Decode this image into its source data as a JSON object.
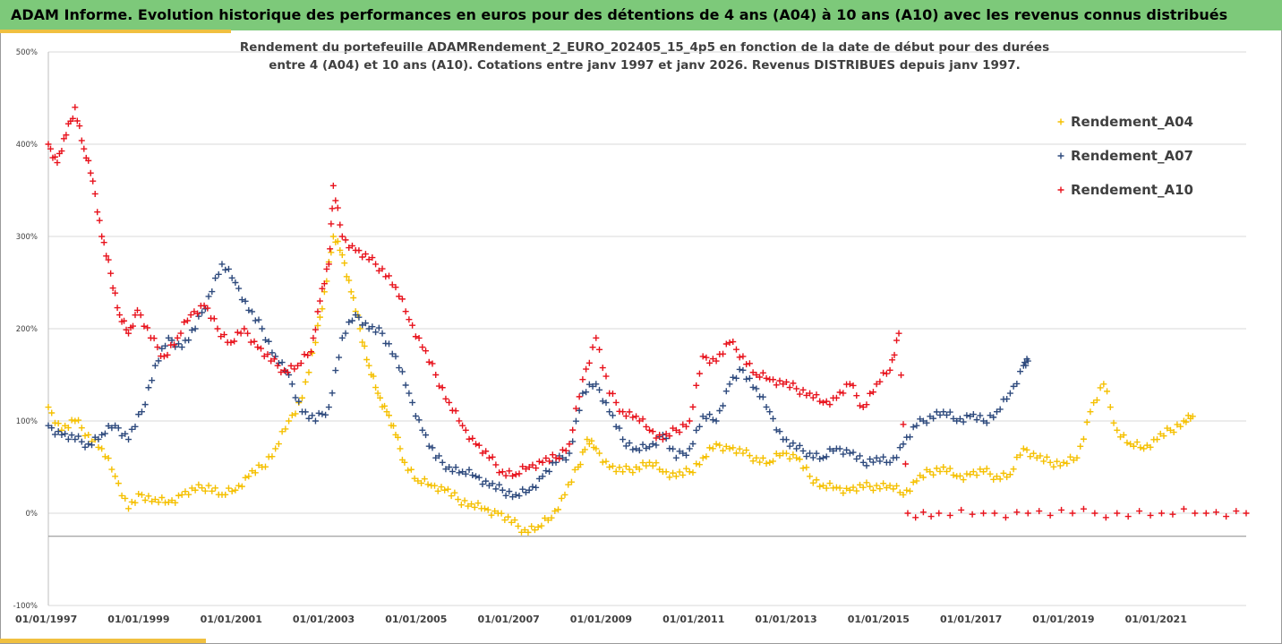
{
  "header": {
    "title": "ADAM Informe. Evolution historique des performances en euros pour des détentions de 4 ans (A04) à 10 ans (A10) avec les revenus connus distribués"
  },
  "chart_title_line1": "Rendement du portefeuille ADAMRendement_2_EURO_202405_15_4p5  en fonction de la date de début pour des durées",
  "chart_title_line2": "entre 4 (A04) et 10 ans (A10). Cotations entre janv 1997 et janv 2026. Revenus DISTRIBUES depuis janv 1997.",
  "chart_data": {
    "type": "scatter",
    "ylim": [
      -100,
      500
    ],
    "xlim": [
      1997.0,
      2023.9
    ],
    "y_ticks": [
      "500%",
      "400%",
      "300%",
      "200%",
      "100%",
      "0%",
      "-100%"
    ],
    "x_ticks": [
      "01/01/1997",
      "01/01/1999",
      "01/01/2001",
      "01/01/2003",
      "01/01/2005",
      "01/01/2007",
      "01/01/2009",
      "01/01/2011",
      "01/01/2013",
      "01/01/2015",
      "01/01/2017",
      "01/01/2019",
      "01/01/2021"
    ],
    "grid": true,
    "legend_position": "top-right",
    "series": [
      {
        "name": "Rendement_A04",
        "color": "#f5c000",
        "points": [
          [
            1997.0,
            115
          ],
          [
            1997.3,
            90
          ],
          [
            1997.6,
            100
          ],
          [
            1997.9,
            85
          ],
          [
            1998.2,
            70
          ],
          [
            1998.5,
            40
          ],
          [
            1998.8,
            5
          ],
          [
            1999.1,
            20
          ],
          [
            1999.4,
            15
          ],
          [
            1999.7,
            12
          ],
          [
            2000.0,
            20
          ],
          [
            2000.3,
            25
          ],
          [
            2000.6,
            30
          ],
          [
            2000.9,
            20
          ],
          [
            2001.2,
            25
          ],
          [
            2001.5,
            40
          ],
          [
            2001.8,
            50
          ],
          [
            2002.1,
            70
          ],
          [
            2002.4,
            100
          ],
          [
            2002.7,
            125
          ],
          [
            2003.0,
            185
          ],
          [
            2003.2,
            240
          ],
          [
            2003.4,
            300
          ],
          [
            2003.6,
            280
          ],
          [
            2003.8,
            240
          ],
          [
            2004.0,
            200
          ],
          [
            2004.2,
            160
          ],
          [
            2004.4,
            130
          ],
          [
            2004.6,
            110
          ],
          [
            2004.8,
            85
          ],
          [
            2005.0,
            55
          ],
          [
            2005.3,
            35
          ],
          [
            2005.6,
            30
          ],
          [
            2005.9,
            25
          ],
          [
            2006.2,
            15
          ],
          [
            2006.5,
            10
          ],
          [
            2006.8,
            5
          ],
          [
            2007.1,
            0
          ],
          [
            2007.4,
            -10
          ],
          [
            2007.7,
            -18
          ],
          [
            2008.0,
            -15
          ],
          [
            2008.3,
            -5
          ],
          [
            2008.6,
            20
          ],
          [
            2008.9,
            50
          ],
          [
            2009.1,
            80
          ],
          [
            2009.3,
            70
          ],
          [
            2009.6,
            50
          ],
          [
            2009.9,
            45
          ],
          [
            2010.2,
            50
          ],
          [
            2010.5,
            55
          ],
          [
            2010.8,
            45
          ],
          [
            2011.1,
            40
          ],
          [
            2011.4,
            45
          ],
          [
            2011.7,
            60
          ],
          [
            2012.0,
            75
          ],
          [
            2012.3,
            70
          ],
          [
            2012.6,
            65
          ],
          [
            2012.9,
            60
          ],
          [
            2013.2,
            55
          ],
          [
            2013.5,
            65
          ],
          [
            2013.8,
            60
          ],
          [
            2014.1,
            40
          ],
          [
            2014.4,
            30
          ],
          [
            2014.7,
            28
          ],
          [
            2015.0,
            25
          ],
          [
            2015.3,
            28
          ],
          [
            2015.6,
            30
          ],
          [
            2015.9,
            30
          ],
          [
            2016.2,
            20
          ],
          [
            2016.5,
            35
          ],
          [
            2016.8,
            45
          ],
          [
            2017.1,
            50
          ],
          [
            2017.4,
            40
          ],
          [
            2017.7,
            42
          ],
          [
            2018.0,
            45
          ],
          [
            2018.3,
            40
          ],
          [
            2018.6,
            42
          ],
          [
            2018.9,
            70
          ],
          [
            2019.2,
            60
          ],
          [
            2019.5,
            55
          ],
          [
            2019.8,
            55
          ],
          [
            2020.1,
            60
          ],
          [
            2020.4,
            110
          ],
          [
            2020.7,
            140
          ],
          [
            2021.0,
            90
          ],
          [
            2021.3,
            75
          ],
          [
            2021.6,
            70
          ],
          [
            2021.9,
            80
          ],
          [
            2022.2,
            90
          ],
          [
            2022.5,
            100
          ],
          [
            2022.7,
            105
          ]
        ]
      },
      {
        "name": "Rendement_A07",
        "color": "#2e4a7d",
        "points": [
          [
            1997.0,
            95
          ],
          [
            1997.3,
            85
          ],
          [
            1997.6,
            80
          ],
          [
            1997.9,
            75
          ],
          [
            1998.2,
            85
          ],
          [
            1998.5,
            95
          ],
          [
            1998.8,
            80
          ],
          [
            1999.1,
            110
          ],
          [
            1999.4,
            160
          ],
          [
            1999.7,
            190
          ],
          [
            2000.0,
            180
          ],
          [
            2000.3,
            200
          ],
          [
            2000.6,
            235
          ],
          [
            2000.9,
            270
          ],
          [
            2001.2,
            250
          ],
          [
            2001.5,
            220
          ],
          [
            2001.8,
            200
          ],
          [
            2002.1,
            170
          ],
          [
            2002.4,
            150
          ],
          [
            2002.7,
            110
          ],
          [
            2003.0,
            100
          ],
          [
            2003.3,
            115
          ],
          [
            2003.6,
            190
          ],
          [
            2003.9,
            215
          ],
          [
            2004.2,
            200
          ],
          [
            2004.5,
            195
          ],
          [
            2004.8,
            170
          ],
          [
            2005.1,
            130
          ],
          [
            2005.4,
            90
          ],
          [
            2005.7,
            60
          ],
          [
            2006.0,
            50
          ],
          [
            2006.3,
            45
          ],
          [
            2006.6,
            40
          ],
          [
            2006.9,
            30
          ],
          [
            2007.2,
            25
          ],
          [
            2007.5,
            20
          ],
          [
            2007.8,
            25
          ],
          [
            2008.1,
            40
          ],
          [
            2008.4,
            55
          ],
          [
            2008.7,
            65
          ],
          [
            2009.0,
            130
          ],
          [
            2009.3,
            140
          ],
          [
            2009.6,
            110
          ],
          [
            2009.9,
            80
          ],
          [
            2010.2,
            70
          ],
          [
            2010.5,
            72
          ],
          [
            2010.8,
            85
          ],
          [
            2011.1,
            60
          ],
          [
            2011.4,
            70
          ],
          [
            2011.7,
            105
          ],
          [
            2012.0,
            100
          ],
          [
            2012.3,
            140
          ],
          [
            2012.6,
            155
          ],
          [
            2012.9,
            135
          ],
          [
            2013.2,
            110
          ],
          [
            2013.5,
            80
          ],
          [
            2013.8,
            70
          ],
          [
            2014.1,
            65
          ],
          [
            2014.4,
            60
          ],
          [
            2014.7,
            70
          ],
          [
            2015.0,
            65
          ],
          [
            2015.3,
            55
          ],
          [
            2015.6,
            60
          ],
          [
            2015.9,
            55
          ],
          [
            2016.2,
            75
          ],
          [
            2016.5,
            95
          ],
          [
            2016.8,
            105
          ],
          [
            2017.1,
            110
          ],
          [
            2017.4,
            100
          ],
          [
            2017.7,
            105
          ],
          [
            2018.0,
            100
          ],
          [
            2018.3,
            110
          ],
          [
            2018.6,
            130
          ],
          [
            2018.9,
            160
          ],
          [
            2019.0,
            165
          ]
        ]
      },
      {
        "name": "Rendement_A10",
        "color": "#e8121c",
        "points": [
          [
            1997.0,
            400
          ],
          [
            1997.2,
            380
          ],
          [
            1997.4,
            410
          ],
          [
            1997.6,
            440
          ],
          [
            1997.8,
            395
          ],
          [
            1998.0,
            360
          ],
          [
            1998.2,
            300
          ],
          [
            1998.4,
            260
          ],
          [
            1998.6,
            215
          ],
          [
            1998.8,
            195
          ],
          [
            1999.0,
            220
          ],
          [
            1999.3,
            190
          ],
          [
            1999.6,
            170
          ],
          [
            1999.9,
            190
          ],
          [
            2000.2,
            215
          ],
          [
            2000.5,
            225
          ],
          [
            2000.8,
            200
          ],
          [
            2001.1,
            185
          ],
          [
            2001.4,
            200
          ],
          [
            2001.7,
            180
          ],
          [
            2002.0,
            165
          ],
          [
            2002.3,
            155
          ],
          [
            2002.6,
            160
          ],
          [
            2002.9,
            175
          ],
          [
            2003.1,
            230
          ],
          [
            2003.3,
            270
          ],
          [
            2003.4,
            355
          ],
          [
            2003.6,
            300
          ],
          [
            2003.9,
            285
          ],
          [
            2004.2,
            275
          ],
          [
            2004.5,
            265
          ],
          [
            2004.8,
            245
          ],
          [
            2005.1,
            210
          ],
          [
            2005.4,
            180
          ],
          [
            2005.7,
            150
          ],
          [
            2006.0,
            120
          ],
          [
            2006.3,
            95
          ],
          [
            2006.6,
            75
          ],
          [
            2006.9,
            60
          ],
          [
            2007.2,
            45
          ],
          [
            2007.5,
            42
          ],
          [
            2007.8,
            50
          ],
          [
            2008.1,
            55
          ],
          [
            2008.4,
            60
          ],
          [
            2008.7,
            75
          ],
          [
            2009.0,
            145
          ],
          [
            2009.3,
            190
          ],
          [
            2009.6,
            130
          ],
          [
            2009.9,
            110
          ],
          [
            2010.2,
            105
          ],
          [
            2010.5,
            90
          ],
          [
            2010.8,
            80
          ],
          [
            2011.1,
            90
          ],
          [
            2011.4,
            100
          ],
          [
            2011.7,
            170
          ],
          [
            2012.0,
            165
          ],
          [
            2012.3,
            185
          ],
          [
            2012.6,
            170
          ],
          [
            2012.9,
            150
          ],
          [
            2013.2,
            145
          ],
          [
            2013.5,
            140
          ],
          [
            2013.8,
            135
          ],
          [
            2014.1,
            130
          ],
          [
            2014.4,
            120
          ],
          [
            2014.7,
            125
          ],
          [
            2015.0,
            140
          ],
          [
            2015.3,
            115
          ],
          [
            2015.6,
            140
          ],
          [
            2015.9,
            155
          ],
          [
            2016.1,
            195
          ],
          [
            2016.3,
            0
          ],
          [
            2017.0,
            0
          ],
          [
            2018.0,
            0
          ],
          [
            2019.0,
            0
          ],
          [
            2020.0,
            0
          ],
          [
            2021.0,
            0
          ],
          [
            2022.0,
            0
          ],
          [
            2023.0,
            0
          ],
          [
            2023.9,
            0
          ]
        ]
      }
    ]
  }
}
